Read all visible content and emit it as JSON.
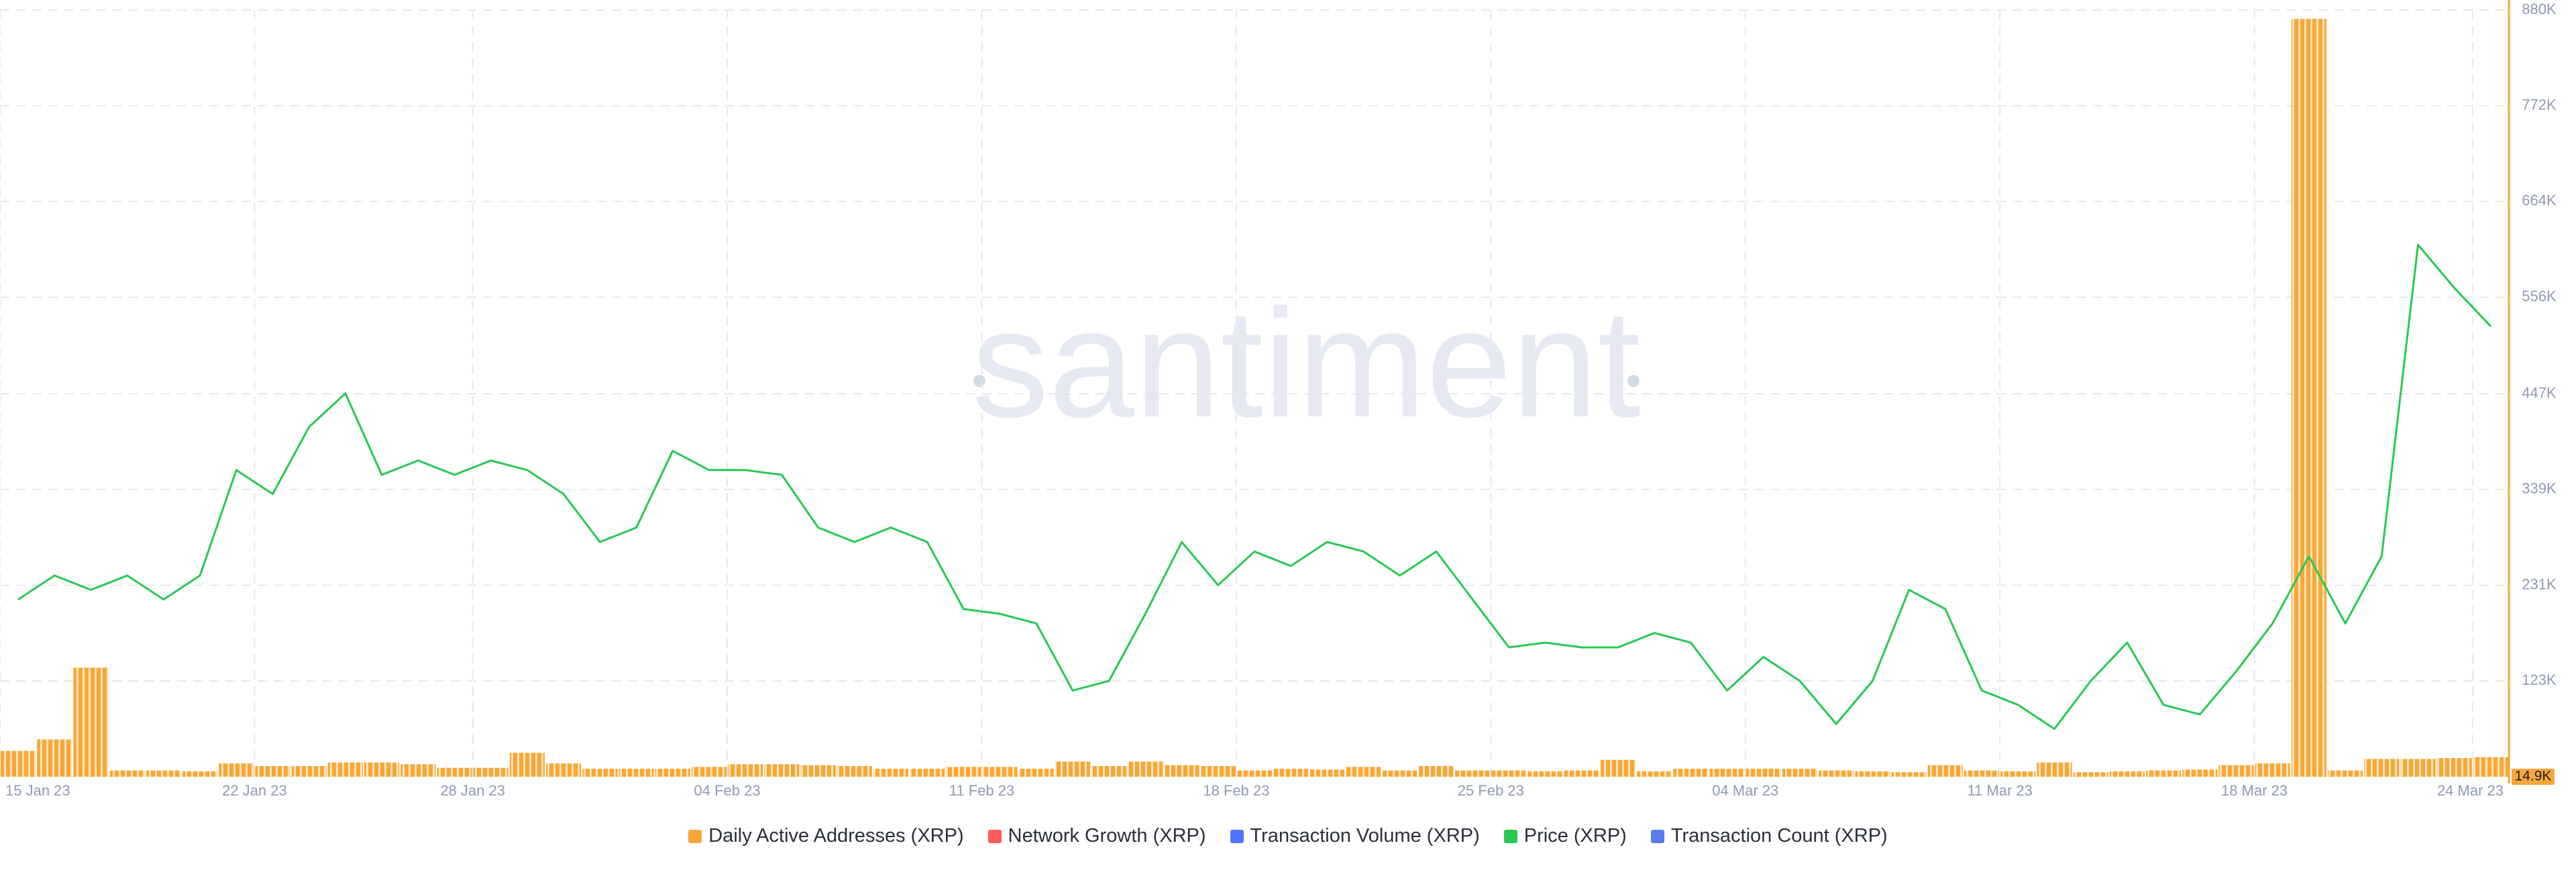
{
  "chart_data": {
    "type": "bar-line",
    "watermark": "santiment",
    "x": [
      "2023-01-15",
      "2023-01-16",
      "2023-01-17",
      "2023-01-18",
      "2023-01-19",
      "2023-01-20",
      "2023-01-21",
      "2023-01-22",
      "2023-01-23",
      "2023-01-24",
      "2023-01-25",
      "2023-01-26",
      "2023-01-27",
      "2023-01-28",
      "2023-01-29",
      "2023-01-30",
      "2023-01-31",
      "2023-02-01",
      "2023-02-02",
      "2023-02-03",
      "2023-02-04",
      "2023-02-05",
      "2023-02-06",
      "2023-02-07",
      "2023-02-08",
      "2023-02-09",
      "2023-02-10",
      "2023-02-11",
      "2023-02-12",
      "2023-02-13",
      "2023-02-14",
      "2023-02-15",
      "2023-02-16",
      "2023-02-17",
      "2023-02-18",
      "2023-02-19",
      "2023-02-20",
      "2023-02-21",
      "2023-02-22",
      "2023-02-23",
      "2023-02-24",
      "2023-02-25",
      "2023-02-26",
      "2023-02-27",
      "2023-02-28",
      "2023-03-01",
      "2023-03-02",
      "2023-03-03",
      "2023-03-04",
      "2023-03-05",
      "2023-03-06",
      "2023-03-07",
      "2023-03-08",
      "2023-03-09",
      "2023-03-10",
      "2023-03-11",
      "2023-03-12",
      "2023-03-13",
      "2023-03-14",
      "2023-03-15",
      "2023-03-16",
      "2023-03-17",
      "2023-03-18",
      "2023-03-19",
      "2023-03-20",
      "2023-03-21",
      "2023-03-22",
      "2023-03-23",
      "2023-03-24"
    ],
    "xlim": [
      "2023-01-15",
      "2023-03-25"
    ],
    "xticks": [
      {
        "value": "2023-01-15",
        "label": "15 Jan 23"
      },
      {
        "value": "2023-01-22",
        "label": "22 Jan 23"
      },
      {
        "value": "2023-01-28",
        "label": "28 Jan 23"
      },
      {
        "value": "2023-02-04",
        "label": "04 Feb 23"
      },
      {
        "value": "2023-02-11",
        "label": "11 Feb 23"
      },
      {
        "value": "2023-02-18",
        "label": "18 Feb 23"
      },
      {
        "value": "2023-02-25",
        "label": "25 Feb 23"
      },
      {
        "value": "2023-03-04",
        "label": "04 Mar 23"
      },
      {
        "value": "2023-03-11",
        "label": "11 Mar 23"
      },
      {
        "value": "2023-03-18",
        "label": "18 Mar 23"
      },
      {
        "value": "2023-03-24",
        "label": "24 Mar 23"
      }
    ],
    "ylim": [
      14900,
      880000
    ],
    "yticks": [
      {
        "value": 14900,
        "label": "14.9K"
      },
      {
        "value": 123000,
        "label": "123K"
      },
      {
        "value": 231000,
        "label": "231K"
      },
      {
        "value": 339000,
        "label": "339K"
      },
      {
        "value": 447000,
        "label": "447K"
      },
      {
        "value": 556000,
        "label": "556K"
      },
      {
        "value": 664000,
        "label": "664K"
      },
      {
        "value": 772000,
        "label": "772K"
      },
      {
        "value": 880000,
        "label": "880K"
      }
    ],
    "y2lim": [
      0.34,
      0.5
    ],
    "grid": true,
    "series": [
      {
        "name": "Daily Active Addresses (XRP)",
        "color": "#f7a738",
        "kind": "bar",
        "values": [
          44000,
          57000,
          138000,
          22000,
          22000,
          21000,
          30000,
          27000,
          27000,
          31000,
          31000,
          29000,
          25000,
          25000,
          42000,
          30000,
          24000,
          24000,
          24000,
          26000,
          29000,
          29000,
          28000,
          27000,
          24000,
          24000,
          26000,
          26000,
          24000,
          32000,
          27000,
          32000,
          28000,
          27000,
          22000,
          24000,
          23000,
          26000,
          22000,
          27000,
          22000,
          22000,
          21000,
          22000,
          34000,
          21000,
          24000,
          24000,
          24000,
          24000,
          22000,
          21000,
          20000,
          28000,
          22000,
          21000,
          31000,
          20000,
          21000,
          22000,
          23000,
          28000,
          30000,
          870000,
          22000,
          35000,
          35000,
          36000,
          37000
        ]
      },
      {
        "name": "Network Growth (XRP)",
        "color": "#ff5b5b"
      },
      {
        "name": "Transaction Volume (XRP)",
        "color": "#5275ff"
      },
      {
        "name": "Price (XRP)",
        "color": "#26c953",
        "kind": "line",
        "axis": "y2",
        "values": [
          0.377,
          0.382,
          0.379,
          0.382,
          0.377,
          0.382,
          0.404,
          0.399,
          0.413,
          0.42,
          0.403,
          0.406,
          0.403,
          0.406,
          0.404,
          0.399,
          0.389,
          0.392,
          0.408,
          0.404,
          0.404,
          0.403,
          0.392,
          0.389,
          0.392,
          0.389,
          0.375,
          0.374,
          0.372,
          0.358,
          0.36,
          0.374,
          0.389,
          0.38,
          0.387,
          0.384,
          0.389,
          0.387,
          0.382,
          0.387,
          0.377,
          0.367,
          0.368,
          0.367,
          0.367,
          0.37,
          0.368,
          0.358,
          0.365,
          0.36,
          0.351,
          0.36,
          0.379,
          0.375,
          0.358,
          0.355,
          0.35,
          0.36,
          0.368,
          0.355,
          0.353,
          0.362,
          0.372,
          0.386,
          0.372,
          0.386,
          0.451,
          0.442,
          0.434
        ]
      },
      {
        "name": "Transaction Count (XRP)",
        "color": "#5a7cf0"
      }
    ]
  }
}
